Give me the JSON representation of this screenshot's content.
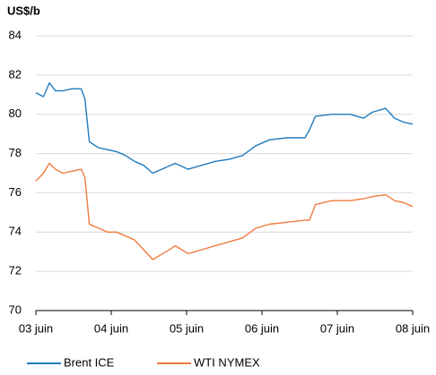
{
  "chart_data": {
    "type": "line",
    "y_label": "US$/b",
    "x": [
      0,
      0.1,
      0.18,
      0.26,
      0.36,
      0.48,
      0.6,
      0.65,
      0.71,
      0.83,
      0.95,
      1.07,
      1.19,
      1.31,
      1.43,
      1.55,
      1.73,
      1.85,
      2.02,
      2.2,
      2.38,
      2.56,
      2.74,
      2.92,
      3.1,
      3.33,
      3.57,
      3.63,
      3.71,
      3.93,
      4.17,
      4.35,
      4.46,
      4.64,
      4.76,
      4.88,
      5.0
    ],
    "series": [
      {
        "name": "Brent ICE",
        "color": "#1f7bbf",
        "values": [
          81.1,
          80.9,
          81.6,
          81.2,
          81.2,
          81.3,
          81.3,
          80.8,
          78.6,
          78.3,
          78.2,
          78.1,
          77.9,
          77.6,
          77.4,
          77.0,
          77.3,
          77.5,
          77.2,
          77.4,
          77.6,
          77.7,
          77.9,
          78.4,
          78.7,
          78.8,
          78.8,
          79.2,
          79.9,
          80.0,
          80.0,
          79.8,
          80.1,
          80.3,
          79.8,
          79.6,
          79.5
        ]
      },
      {
        "name": "WTI NYMEX",
        "color": "#f07b3f",
        "values": [
          76.6,
          77.0,
          77.5,
          77.2,
          77.0,
          77.1,
          77.2,
          76.8,
          74.4,
          74.2,
          74.0,
          74.0,
          73.8,
          73.6,
          73.1,
          72.6,
          73.0,
          73.3,
          72.9,
          73.1,
          73.3,
          73.5,
          73.7,
          74.2,
          74.4,
          74.5,
          74.6,
          74.6,
          75.4,
          75.6,
          75.6,
          75.7,
          75.8,
          75.9,
          75.6,
          75.5,
          75.3
        ]
      }
    ],
    "xlim": [
      0,
      5
    ],
    "xticks": [
      {
        "value": 0,
        "label": "03 juin"
      },
      {
        "value": 1,
        "label": "04 juin"
      },
      {
        "value": 2,
        "label": "05 juin"
      },
      {
        "value": 3,
        "label": "06 juin"
      },
      {
        "value": 4,
        "label": "07 juin"
      },
      {
        "value": 5,
        "label": "08 juin"
      }
    ],
    "ylim": [
      70,
      84
    ],
    "yticks": [
      70,
      72,
      74,
      76,
      78,
      80,
      82,
      84
    ],
    "grid": true,
    "legend": "bottom"
  }
}
